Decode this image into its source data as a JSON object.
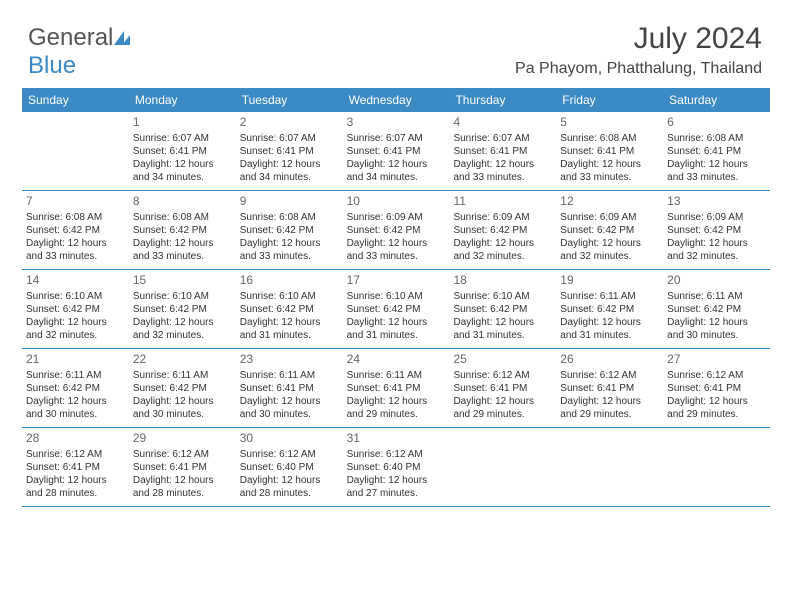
{
  "logo": {
    "text1": "General",
    "text2": "Blue"
  },
  "title": "July 2024",
  "location": "Pa Phayom, Phatthalung, Thailand",
  "theme": {
    "header_bg": "#3b8ac4",
    "header_fg": "#ffffff",
    "border_color": "#3b8ac4",
    "text_color": "#333333",
    "daynum_color": "#666666",
    "font_family": "Arial",
    "title_fontsize": 30,
    "location_fontsize": 16,
    "header_fontsize": 12,
    "body_fontsize": 10
  },
  "weekdays": [
    "Sunday",
    "Monday",
    "Tuesday",
    "Wednesday",
    "Thursday",
    "Friday",
    "Saturday"
  ],
  "weeks": [
    [
      null,
      {
        "n": "1",
        "sr": "Sunrise: 6:07 AM",
        "ss": "Sunset: 6:41 PM",
        "d1": "Daylight: 12 hours",
        "d2": "and 34 minutes."
      },
      {
        "n": "2",
        "sr": "Sunrise: 6:07 AM",
        "ss": "Sunset: 6:41 PM",
        "d1": "Daylight: 12 hours",
        "d2": "and 34 minutes."
      },
      {
        "n": "3",
        "sr": "Sunrise: 6:07 AM",
        "ss": "Sunset: 6:41 PM",
        "d1": "Daylight: 12 hours",
        "d2": "and 34 minutes."
      },
      {
        "n": "4",
        "sr": "Sunrise: 6:07 AM",
        "ss": "Sunset: 6:41 PM",
        "d1": "Daylight: 12 hours",
        "d2": "and 33 minutes."
      },
      {
        "n": "5",
        "sr": "Sunrise: 6:08 AM",
        "ss": "Sunset: 6:41 PM",
        "d1": "Daylight: 12 hours",
        "d2": "and 33 minutes."
      },
      {
        "n": "6",
        "sr": "Sunrise: 6:08 AM",
        "ss": "Sunset: 6:41 PM",
        "d1": "Daylight: 12 hours",
        "d2": "and 33 minutes."
      }
    ],
    [
      {
        "n": "7",
        "sr": "Sunrise: 6:08 AM",
        "ss": "Sunset: 6:42 PM",
        "d1": "Daylight: 12 hours",
        "d2": "and 33 minutes."
      },
      {
        "n": "8",
        "sr": "Sunrise: 6:08 AM",
        "ss": "Sunset: 6:42 PM",
        "d1": "Daylight: 12 hours",
        "d2": "and 33 minutes."
      },
      {
        "n": "9",
        "sr": "Sunrise: 6:08 AM",
        "ss": "Sunset: 6:42 PM",
        "d1": "Daylight: 12 hours",
        "d2": "and 33 minutes."
      },
      {
        "n": "10",
        "sr": "Sunrise: 6:09 AM",
        "ss": "Sunset: 6:42 PM",
        "d1": "Daylight: 12 hours",
        "d2": "and 33 minutes."
      },
      {
        "n": "11",
        "sr": "Sunrise: 6:09 AM",
        "ss": "Sunset: 6:42 PM",
        "d1": "Daylight: 12 hours",
        "d2": "and 32 minutes."
      },
      {
        "n": "12",
        "sr": "Sunrise: 6:09 AM",
        "ss": "Sunset: 6:42 PM",
        "d1": "Daylight: 12 hours",
        "d2": "and 32 minutes."
      },
      {
        "n": "13",
        "sr": "Sunrise: 6:09 AM",
        "ss": "Sunset: 6:42 PM",
        "d1": "Daylight: 12 hours",
        "d2": "and 32 minutes."
      }
    ],
    [
      {
        "n": "14",
        "sr": "Sunrise: 6:10 AM",
        "ss": "Sunset: 6:42 PM",
        "d1": "Daylight: 12 hours",
        "d2": "and 32 minutes."
      },
      {
        "n": "15",
        "sr": "Sunrise: 6:10 AM",
        "ss": "Sunset: 6:42 PM",
        "d1": "Daylight: 12 hours",
        "d2": "and 32 minutes."
      },
      {
        "n": "16",
        "sr": "Sunrise: 6:10 AM",
        "ss": "Sunset: 6:42 PM",
        "d1": "Daylight: 12 hours",
        "d2": "and 31 minutes."
      },
      {
        "n": "17",
        "sr": "Sunrise: 6:10 AM",
        "ss": "Sunset: 6:42 PM",
        "d1": "Daylight: 12 hours",
        "d2": "and 31 minutes."
      },
      {
        "n": "18",
        "sr": "Sunrise: 6:10 AM",
        "ss": "Sunset: 6:42 PM",
        "d1": "Daylight: 12 hours",
        "d2": "and 31 minutes."
      },
      {
        "n": "19",
        "sr": "Sunrise: 6:11 AM",
        "ss": "Sunset: 6:42 PM",
        "d1": "Daylight: 12 hours",
        "d2": "and 31 minutes."
      },
      {
        "n": "20",
        "sr": "Sunrise: 6:11 AM",
        "ss": "Sunset: 6:42 PM",
        "d1": "Daylight: 12 hours",
        "d2": "and 30 minutes."
      }
    ],
    [
      {
        "n": "21",
        "sr": "Sunrise: 6:11 AM",
        "ss": "Sunset: 6:42 PM",
        "d1": "Daylight: 12 hours",
        "d2": "and 30 minutes."
      },
      {
        "n": "22",
        "sr": "Sunrise: 6:11 AM",
        "ss": "Sunset: 6:42 PM",
        "d1": "Daylight: 12 hours",
        "d2": "and 30 minutes."
      },
      {
        "n": "23",
        "sr": "Sunrise: 6:11 AM",
        "ss": "Sunset: 6:41 PM",
        "d1": "Daylight: 12 hours",
        "d2": "and 30 minutes."
      },
      {
        "n": "24",
        "sr": "Sunrise: 6:11 AM",
        "ss": "Sunset: 6:41 PM",
        "d1": "Daylight: 12 hours",
        "d2": "and 29 minutes."
      },
      {
        "n": "25",
        "sr": "Sunrise: 6:12 AM",
        "ss": "Sunset: 6:41 PM",
        "d1": "Daylight: 12 hours",
        "d2": "and 29 minutes."
      },
      {
        "n": "26",
        "sr": "Sunrise: 6:12 AM",
        "ss": "Sunset: 6:41 PM",
        "d1": "Daylight: 12 hours",
        "d2": "and 29 minutes."
      },
      {
        "n": "27",
        "sr": "Sunrise: 6:12 AM",
        "ss": "Sunset: 6:41 PM",
        "d1": "Daylight: 12 hours",
        "d2": "and 29 minutes."
      }
    ],
    [
      {
        "n": "28",
        "sr": "Sunrise: 6:12 AM",
        "ss": "Sunset: 6:41 PM",
        "d1": "Daylight: 12 hours",
        "d2": "and 28 minutes."
      },
      {
        "n": "29",
        "sr": "Sunrise: 6:12 AM",
        "ss": "Sunset: 6:41 PM",
        "d1": "Daylight: 12 hours",
        "d2": "and 28 minutes."
      },
      {
        "n": "30",
        "sr": "Sunrise: 6:12 AM",
        "ss": "Sunset: 6:40 PM",
        "d1": "Daylight: 12 hours",
        "d2": "and 28 minutes."
      },
      {
        "n": "31",
        "sr": "Sunrise: 6:12 AM",
        "ss": "Sunset: 6:40 PM",
        "d1": "Daylight: 12 hours",
        "d2": "and 27 minutes."
      },
      null,
      null,
      null
    ]
  ]
}
